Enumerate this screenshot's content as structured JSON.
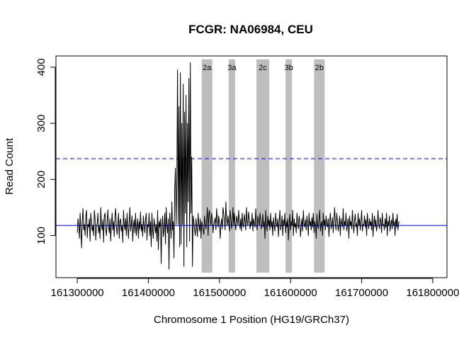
{
  "chart_data": {
    "type": "line",
    "title": "FCGR: NA06984, CEU",
    "xlabel": "Chromosome 1 Position (HG19/GRCh37)",
    "ylabel": "Read Count",
    "xlim": [
      161270000,
      161820000
    ],
    "ylim": [
      25,
      420
    ],
    "x_ticks": [
      161300000,
      161400000,
      161500000,
      161600000,
      161700000,
      161800000
    ],
    "x_tick_labels": [
      "161300000",
      "161400000",
      "161500000",
      "161600000",
      "161700000",
      "161800000"
    ],
    "y_ticks": [
      100,
      200,
      300,
      400
    ],
    "y_tick_labels": [
      "100",
      "200",
      "300",
      "400"
    ],
    "reference_lines": [
      {
        "value": 118,
        "style": "solid",
        "color": "#0000ff"
      },
      {
        "value": 237,
        "style": "dashed",
        "color": "#0000ff"
      }
    ],
    "regions": [
      {
        "label": "2a",
        "start": 161475000,
        "end": 161490000,
        "color": "#bebebe"
      },
      {
        "label": "3a",
        "start": 161513000,
        "end": 161522000,
        "color": "#bebebe"
      },
      {
        "label": "2c",
        "start": 161552000,
        "end": 161570000,
        "color": "#bebebe"
      },
      {
        "label": "3b",
        "start": 161593000,
        "end": 161602000,
        "color": "#bebebe"
      },
      {
        "label": "2b",
        "start": 161633000,
        "end": 161648000,
        "color": "#bebebe"
      }
    ],
    "series": [
      {
        "color": "#000000",
        "x_start": 161300000,
        "x_step": 1000,
        "values": [
          105,
          130,
          118,
          95,
          140,
          112,
          78,
          125,
          148,
          110,
          120,
          100,
          135,
          145,
          96,
          120,
          115,
          130,
          90,
          140,
          125,
          108,
          118,
          100,
          145,
          130,
          92,
          115,
          122,
          140,
          105,
          118,
          95,
          150,
          120,
          110,
          128,
          88,
          135,
          140,
          112,
          100,
          125,
          146,
          115,
          105,
          130,
          90,
          120,
          140,
          110,
          125,
          98,
          135,
          148,
          115,
          102,
          120,
          140,
          95,
          125,
          130,
          108,
          118,
          88,
          145,
          120,
          110,
          130,
          100,
          140,
          115,
          95,
          125,
          150,
          108,
          120,
          135,
          90,
          118,
          128,
          105,
          140,
          100,
          115,
          130,
          95,
          125,
          112,
          142,
          108,
          120,
          98,
          135,
          118,
          105,
          128,
          140,
          92,
          120,
          115,
          140,
          100,
          125,
          80,
          140,
          110,
          95,
          130,
          118,
          105,
          120,
          90,
          145,
          75,
          125,
          115,
          130,
          50,
          120,
          135,
          98,
          110,
          140,
          85,
          150,
          120,
          105,
          130,
          40,
          140,
          118,
          95,
          160,
          110,
          125,
          60,
          180,
          220,
          120,
          190,
          395,
          120,
          330,
          80,
          390,
          85,
          300,
          120,
          370,
          45,
          320,
          140,
          350,
          80,
          300,
          160,
          380,
          90,
          408,
          140,
          240,
          45,
          135,
          125,
          110,
          100,
          130,
          115,
          98,
          140,
          120,
          108,
          130,
          95,
          125,
          118,
          110,
          102,
          135,
          120,
          112,
          128,
          150,
          100,
          138,
          145,
          125,
          118,
          140,
          130,
          105,
          120,
          125,
          132,
          110,
          148,
          128,
          115,
          135,
          122,
          95,
          118,
          130,
          112,
          150,
          140,
          125,
          110,
          160,
          128,
          118,
          135,
          122,
          108,
          145,
          130,
          112,
          125,
          150,
          118,
          140,
          120,
          110,
          135,
          128,
          118,
          145,
          125,
          112,
          130,
          108,
          140,
          120,
          115,
          138,
          126,
          110,
          150,
          124,
          118,
          142,
          130,
          112,
          125,
          118,
          140,
          108,
          130,
          122,
          115,
          148,
          120,
          110,
          135,
          125,
          118,
          140,
          128,
          112,
          120,
          138,
          115,
          125,
          95,
          145,
          120,
          108,
          135,
          118,
          128,
          110,
          140,
          115,
          125,
          100,
          132,
          118,
          108,
          140,
          122,
          115,
          130,
          98,
          125,
          145,
          110,
          120,
          135,
          100,
          128,
          118,
          140,
          105,
          125,
          115,
          130,
          92,
          120,
          138,
          110,
          125,
          118,
          145,
          100,
          130,
          115,
          122,
          105,
          140,
          120,
          112,
          135,
          125,
          98,
          118,
          130,
          108,
          145,
          120,
          115,
          128,
          110,
          135,
          122,
          100,
          140,
          118,
          125,
          110,
          132,
          115,
          140,
          105,
          125,
          120,
          95,
          138,
          118,
          112,
          130,
          145,
          108,
          120,
          125,
          100,
          140,
          118,
          128,
          110,
          135,
          120,
          115,
          130,
          98,
          125,
          140,
          112,
          118,
          132,
          105,
          128,
          150,
          120,
          110,
          140,
          125,
          108,
          118,
          135,
          100,
          130,
          122,
          115,
          148,
          110,
          125,
          118,
          140,
          108,
          120,
          130,
          95,
          135,
          118,
          125,
          112,
          145,
          120,
          105,
          128,
          138,
          115,
          122,
          100,
          140,
          118,
          130,
          110,
          125,
          145,
          108,
          120,
          118,
          135,
          115,
          128,
          100,
          140,
          122,
          112,
          130,
          118,
          125,
          110,
          140,
          98,
          120,
          135,
          115,
          128,
          108,
          118,
          145,
          120,
          112,
          132,
          125,
          105,
          140,
          118,
          120,
          110,
          130,
          115,
          140,
          100,
          125,
          118,
          135,
          108,
          120,
          128,
          112,
          140,
          118,
          125,
          100,
          130,
          115,
          138,
          110,
          122,
          125
        ]
      }
    ]
  }
}
